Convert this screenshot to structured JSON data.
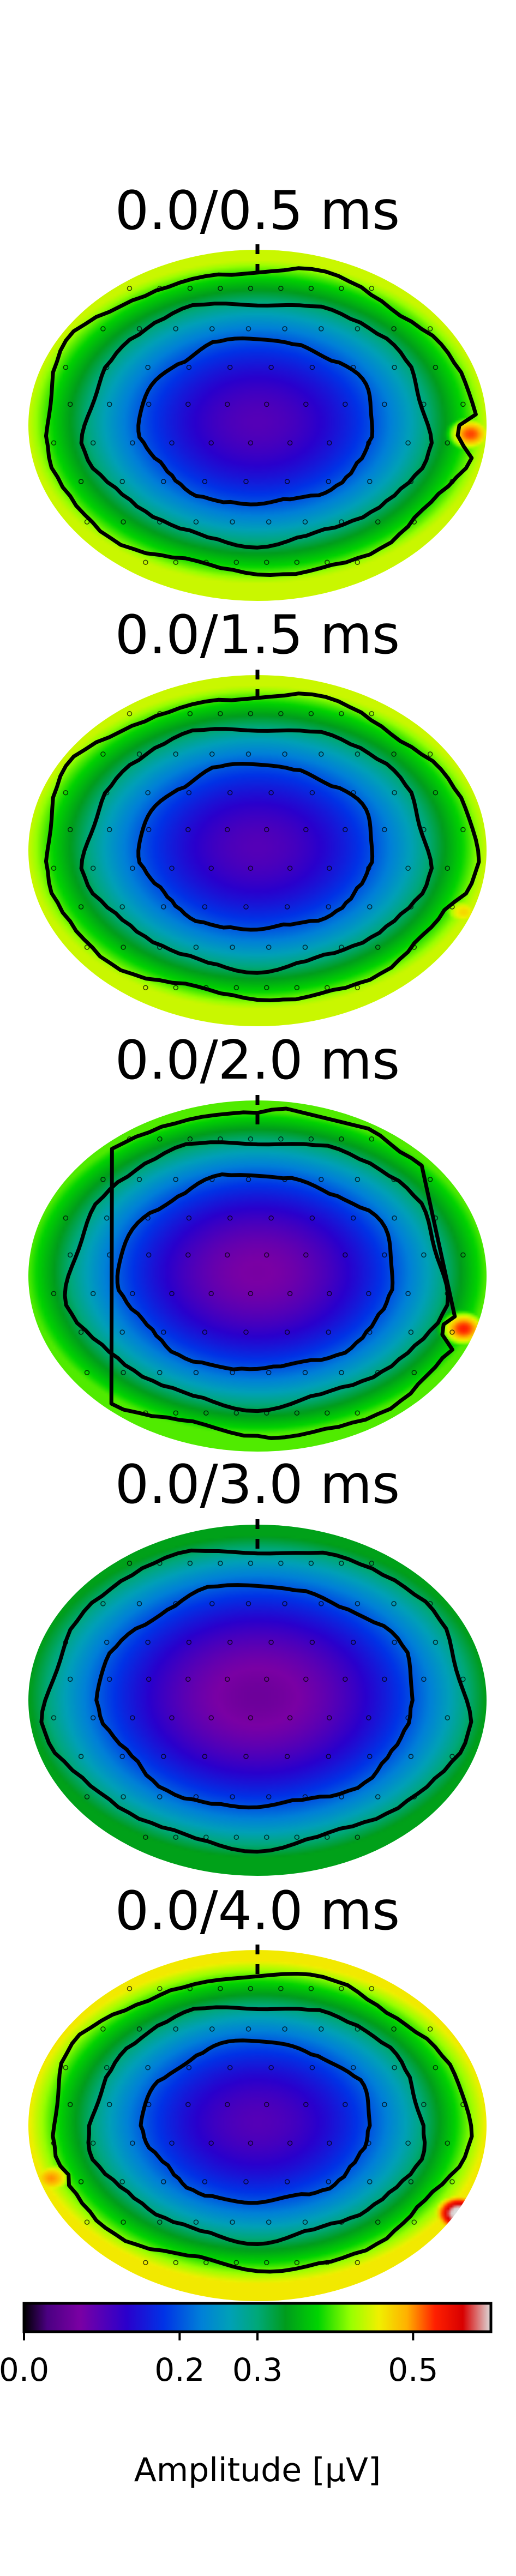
{
  "chart_data": {
    "type": "heatmap",
    "panels": [
      {
        "title": "0.0/0.5 ms",
        "hot_spots": [
          {
            "pos": [
              0.93,
              0.05
            ],
            "value": 0.52
          }
        ],
        "min_value": 0.1,
        "rim_value": 0.44,
        "contour_levels": [
          0.2,
          0.3,
          0.4
        ]
      },
      {
        "title": "0.0/1.5 ms",
        "hot_spots": [
          {
            "pos": [
              0.9,
              0.35
            ],
            "value": 0.47
          }
        ],
        "min_value": 0.1,
        "rim_value": 0.44,
        "contour_levels": [
          0.2,
          0.3,
          0.4
        ]
      },
      {
        "title": "0.0/2.0 ms",
        "hot_spots": [
          {
            "pos": [
              0.9,
              0.3
            ],
            "value": 0.53
          }
        ],
        "min_value": 0.07,
        "rim_value": 0.4,
        "contour_levels": [
          0.2,
          0.3,
          0.4
        ]
      },
      {
        "title": "0.0/3.0 ms",
        "hot_spots": [],
        "min_value": 0.06,
        "rim_value": 0.34,
        "contour_levels": [
          0.2,
          0.3
        ]
      },
      {
        "title": "0.0/4.0 ms",
        "hot_spots": [
          {
            "pos": [
              0.88,
              0.5
            ],
            "value": 0.62
          },
          {
            "pos": [
              -0.9,
              0.3
            ],
            "value": 0.5
          }
        ],
        "min_value": 0.1,
        "rim_value": 0.46,
        "contour_levels": [
          0.2,
          0.3,
          0.4
        ]
      }
    ],
    "colorbar": {
      "label": "Amplitude [µV]",
      "range": [
        0.0,
        0.6
      ],
      "ticks": [
        0.0,
        0.2,
        0.3,
        0.5
      ],
      "tick_labels": [
        "0.0",
        "0.2",
        "0.3",
        "0.5"
      ],
      "colormap": "nipy_spectral"
    }
  }
}
